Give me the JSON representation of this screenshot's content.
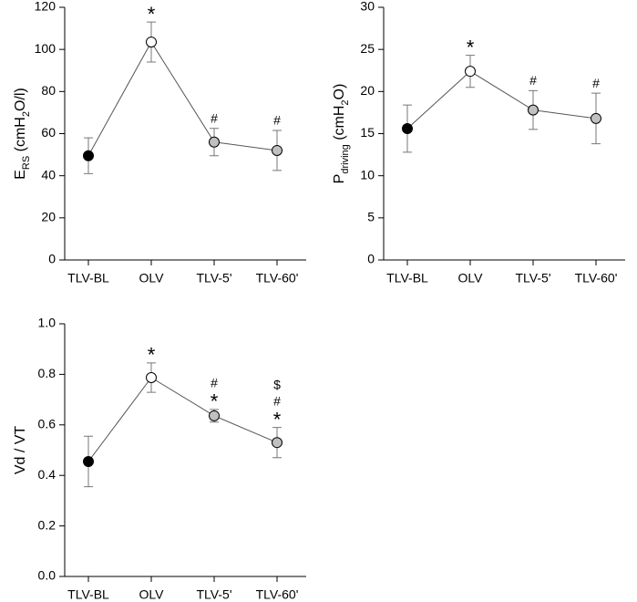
{
  "chart_data": [
    {
      "type": "line",
      "categories": [
        "TLV-BL",
        "OLV",
        "TLV-5'",
        "TLV-60'"
      ],
      "values": [
        49.5,
        103.5,
        56,
        52
      ],
      "errors": [
        8.5,
        9.5,
        6.5,
        9.5
      ],
      "point_colors": [
        "#000000",
        "#ffffff",
        "#c0c0c0",
        "#c0c0c0"
      ],
      "line_color": "#555555",
      "annotations": [
        [],
        [
          "*"
        ],
        [
          "#"
        ],
        [
          "#"
        ]
      ],
      "ylabel": [
        "E",
        "RS",
        " (cmH",
        "2",
        "O/l)"
      ],
      "ylim": [
        0,
        120
      ],
      "yticks": [
        0,
        20,
        40,
        60,
        80,
        100,
        120
      ]
    },
    {
      "type": "line",
      "categories": [
        "TLV-BL",
        "OLV",
        "TLV-5'",
        "TLV-60'"
      ],
      "values": [
        15.6,
        22.4,
        17.8,
        16.8
      ],
      "errors": [
        2.8,
        1.9,
        2.3,
        3
      ],
      "point_colors": [
        "#000000",
        "#ffffff",
        "#c0c0c0",
        "#c0c0c0"
      ],
      "line_color": "#555555",
      "annotations": [
        [],
        [
          "*"
        ],
        [
          "#"
        ],
        [
          "#"
        ]
      ],
      "ylabel": [
        "P",
        "driving",
        " (cmH",
        "2",
        "O)"
      ],
      "ylim": [
        0,
        30
      ],
      "yticks": [
        0,
        5,
        10,
        15,
        20,
        25,
        30
      ]
    },
    {
      "type": "line",
      "categories": [
        "TLV-BL",
        "OLV",
        "TLV-5'",
        "TLV-60'"
      ],
      "values": [
        0.455,
        0.787,
        0.636,
        0.53
      ],
      "errors": [
        0.1,
        0.058,
        0.025,
        0.06
      ],
      "point_colors": [
        "#000000",
        "#ffffff",
        "#c0c0c0",
        "#c0c0c0"
      ],
      "line_color": "#555555",
      "annotations": [
        [],
        [
          "*"
        ],
        [
          "#",
          "*"
        ],
        [
          "$",
          "#",
          "*"
        ]
      ],
      "ylabel": [
        "Vd / VT"
      ],
      "ylim": [
        0,
        1
      ],
      "yticks": [
        {
          "value": 0,
          "label": "0.0"
        },
        0.2,
        0.4,
        0.6,
        0.8,
        {
          "value": 1,
          "label": "1.0"
        }
      ]
    }
  ]
}
